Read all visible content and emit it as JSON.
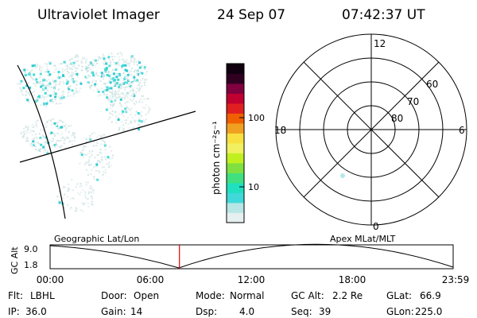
{
  "header": {
    "instrument": "Ultraviolet Imager",
    "date": "24 Sep 07",
    "time": "07:42:37 UT"
  },
  "colorbar": {
    "unit_label": "photon cm⁻²s⁻¹",
    "ticks": [
      "100",
      "10"
    ],
    "colors": [
      "#e6f0f0",
      "#b8e6e6",
      "#40d8d8",
      "#20e0c0",
      "#40e080",
      "#80e040",
      "#c0f020",
      "#f0f060",
      "#f8e040",
      "#f0a020",
      "#f06000",
      "#e02020",
      "#c00030",
      "#800040",
      "#300020",
      "#100010"
    ]
  },
  "polar_plot": {
    "mlt_labels": {
      "top": "12",
      "bottom": "0",
      "left": "18",
      "right": "6"
    },
    "lat_labels": [
      "60",
      "70",
      "80"
    ]
  },
  "timeline": {
    "left_label": "Geographic Lat/Lon",
    "right_label": "Apex MLat/MLT",
    "axis_title": "GC Alt",
    "y_ticks": [
      "9.0",
      "1.8"
    ],
    "x_ticks": [
      "00:00",
      "06:00",
      "12:00",
      "18:00",
      "23:59"
    ],
    "marker_time_fraction": 0.321
  },
  "status": {
    "row1": [
      {
        "label": "Flt:",
        "value": "LBHL"
      },
      {
        "label": "Door:",
        "value": "Open"
      },
      {
        "label": "Mode:",
        "value": "Normal"
      },
      {
        "label": "GC Alt:",
        "value": "2.2 Re"
      },
      {
        "label": "GLat:",
        "value": "66.9"
      }
    ],
    "row2": [
      {
        "label": "IP:",
        "value": "36.0"
      },
      {
        "label": "Gain:",
        "value": "14"
      },
      {
        "label": "Dsp:",
        "value": "4.0"
      },
      {
        "label": "Seq:",
        "value": "39"
      },
      {
        "label": "GLon:",
        "value": "225.0"
      }
    ]
  }
}
